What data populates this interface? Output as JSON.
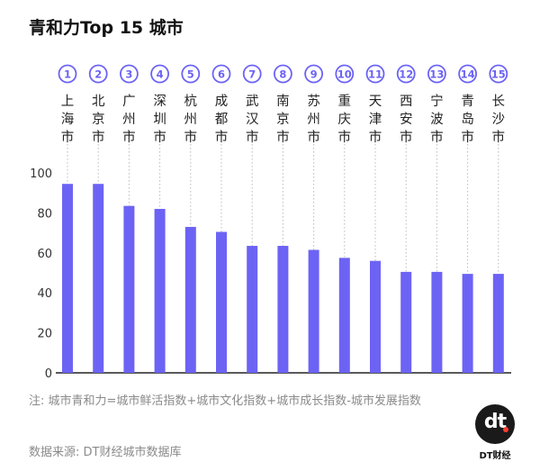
{
  "title": "青和力Top 15 城市",
  "note": "注: 城市青和力=城市鲜活指数+城市文化指数+城市成长指数-城市发展指数",
  "source": "数据来源: DT财经城市数据库",
  "brand": {
    "logo_text": "dt",
    "name": "DT财经"
  },
  "colors": {
    "bar": "#6c63f5",
    "rank": "#6c63f5",
    "axis": "#222222",
    "guide": "#bbbbbb"
  },
  "chart_data": {
    "type": "bar",
    "ranks": [
      "①",
      "②",
      "③",
      "④",
      "⑤",
      "⑥",
      "⑦",
      "⑧",
      "⑨",
      "⑩",
      "⑪",
      "⑫",
      "⑬",
      "⑭",
      "⑮"
    ],
    "categories": [
      "上海市",
      "北京市",
      "广州市",
      "深圳市",
      "杭州市",
      "成都市",
      "武汉市",
      "南京市",
      "苏州市",
      "重庆市",
      "天津市",
      "西安市",
      "宁波市",
      "青岛市",
      "长沙市"
    ],
    "values": [
      94.5,
      94.5,
      83.5,
      82,
      73,
      70.5,
      63.5,
      63.5,
      61.5,
      57.5,
      56,
      50.5,
      50.5,
      49.5,
      49.5
    ],
    "yticks": [
      0,
      20,
      40,
      60,
      80,
      100
    ],
    "ylim": [
      0,
      100
    ],
    "xlabel": "",
    "ylabel": "",
    "grid": false
  }
}
